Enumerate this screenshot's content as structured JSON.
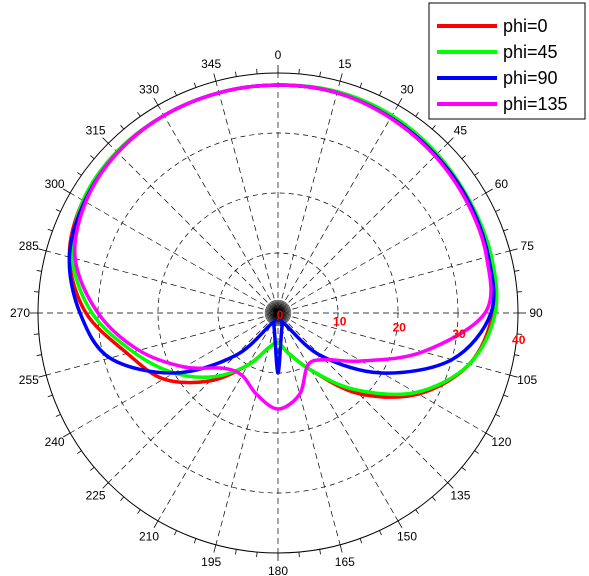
{
  "chart_data": {
    "type": "polar",
    "angle_direction": "clockwise",
    "zero_location": "top",
    "angle_ticks": [
      "0",
      "15",
      "30",
      "45",
      "60",
      "75",
      "90",
      "105",
      "120",
      "135",
      "150",
      "165",
      "180",
      "195",
      "210",
      "225",
      "240",
      "255",
      "270",
      "285",
      "300",
      "315",
      "330",
      "345"
    ],
    "radial_ticks": [
      "0",
      "10",
      "20",
      "30",
      "40"
    ],
    "radial_range": [
      0,
      40
    ],
    "grid": true,
    "legend_position": "top-right",
    "series": [
      {
        "name": "phi=0",
        "color": "#ff0000",
        "points": [
          [
            0,
            38
          ],
          [
            15,
            38
          ],
          [
            30,
            37.7
          ],
          [
            45,
            37.2
          ],
          [
            60,
            36.8
          ],
          [
            75,
            36.5
          ],
          [
            90,
            35.8
          ],
          [
            105,
            33
          ],
          [
            120,
            27
          ],
          [
            135,
            19
          ],
          [
            150,
            11
          ],
          [
            165,
            7
          ],
          [
            180,
            5
          ],
          [
            195,
            6
          ],
          [
            210,
            10
          ],
          [
            225,
            16
          ],
          [
            240,
            22
          ],
          [
            255,
            26
          ],
          [
            270,
            32
          ],
          [
            285,
            36
          ],
          [
            300,
            37.5
          ],
          [
            315,
            38
          ],
          [
            330,
            38
          ],
          [
            345,
            38
          ],
          [
            360,
            38
          ]
        ]
      },
      {
        "name": "phi=45",
        "color": "#00ff00",
        "points": [
          [
            0,
            38
          ],
          [
            15,
            38.2
          ],
          [
            30,
            38
          ],
          [
            45,
            37.5
          ],
          [
            60,
            37
          ],
          [
            75,
            36.8
          ],
          [
            90,
            36.2
          ],
          [
            105,
            33
          ],
          [
            120,
            26.5
          ],
          [
            135,
            18
          ],
          [
            150,
            11
          ],
          [
            165,
            7
          ],
          [
            180,
            5
          ],
          [
            195,
            6
          ],
          [
            210,
            10
          ],
          [
            225,
            15
          ],
          [
            240,
            20
          ],
          [
            255,
            25
          ],
          [
            270,
            31
          ],
          [
            285,
            35.5
          ],
          [
            300,
            37.5
          ],
          [
            315,
            38
          ],
          [
            330,
            38
          ],
          [
            345,
            38
          ],
          [
            360,
            38
          ]
        ]
      },
      {
        "name": "phi=90",
        "color": "#0000ff",
        "points": [
          [
            0,
            38
          ],
          [
            15,
            38
          ],
          [
            30,
            37.6
          ],
          [
            45,
            37.2
          ],
          [
            60,
            36.8
          ],
          [
            75,
            36.3
          ],
          [
            90,
            35.5
          ],
          [
            105,
            30
          ],
          [
            120,
            20
          ],
          [
            135,
            10
          ],
          [
            150,
            2
          ],
          [
            165,
            2.5
          ],
          [
            180,
            10
          ],
          [
            195,
            2.5
          ],
          [
            210,
            2
          ],
          [
            225,
            10
          ],
          [
            240,
            20
          ],
          [
            255,
            29
          ],
          [
            270,
            33
          ],
          [
            285,
            36
          ],
          [
            300,
            37.2
          ],
          [
            315,
            37.8
          ],
          [
            330,
            38
          ],
          [
            345,
            38
          ],
          [
            360,
            38
          ]
        ]
      },
      {
        "name": "phi=135",
        "color": "#ff00ff",
        "points": [
          [
            0,
            38
          ],
          [
            15,
            38
          ],
          [
            30,
            37.5
          ],
          [
            45,
            37
          ],
          [
            60,
            36.5
          ],
          [
            75,
            36
          ],
          [
            90,
            34.5
          ],
          [
            105,
            25
          ],
          [
            120,
            16
          ],
          [
            135,
            11
          ],
          [
            150,
            10
          ],
          [
            165,
            14
          ],
          [
            180,
            16
          ],
          [
            195,
            14
          ],
          [
            210,
            12
          ],
          [
            225,
            13
          ],
          [
            240,
            18
          ],
          [
            255,
            24
          ],
          [
            270,
            30
          ],
          [
            285,
            35
          ],
          [
            300,
            37
          ],
          [
            315,
            37.8
          ],
          [
            330,
            38
          ],
          [
            345,
            38
          ],
          [
            360,
            38
          ]
        ]
      }
    ]
  }
}
